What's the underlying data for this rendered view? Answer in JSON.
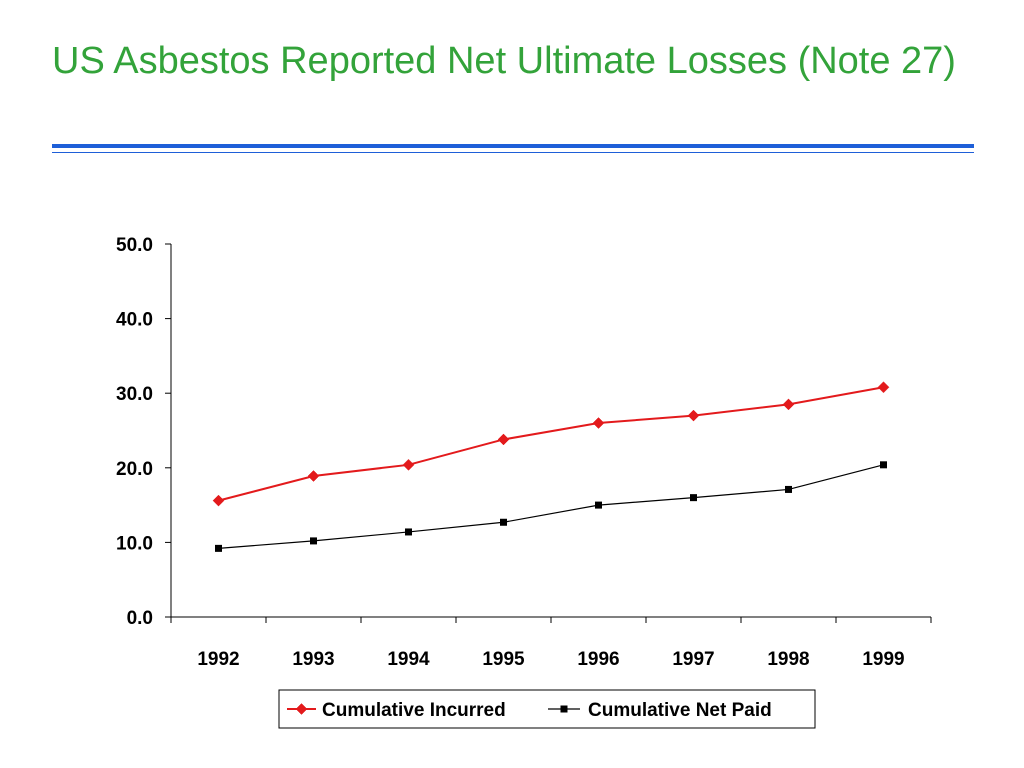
{
  "slide": {
    "title": "US Asbestos Reported Net Ultimate Losses (Note 27)",
    "title_color": "#33a33a",
    "rule_color": "#1e5fd8"
  },
  "chart_data": {
    "type": "line",
    "x": [
      "1992",
      "1993",
      "1994",
      "1995",
      "1996",
      "1997",
      "1998",
      "1999"
    ],
    "y_ticks": [
      "0.0",
      "10.0",
      "20.0",
      "30.0",
      "40.0",
      "50.0"
    ],
    "ylim": [
      0,
      50
    ],
    "grid": false,
    "legend_position": "bottom",
    "series": [
      {
        "name": "Cumulative Incurred",
        "color": "#e31a1c",
        "marker": "diamond",
        "values": [
          15.6,
          18.9,
          20.4,
          23.8,
          26.0,
          27.0,
          28.5,
          30.8
        ]
      },
      {
        "name": "Cumulative Net Paid",
        "color": "#000000",
        "marker": "square",
        "values": [
          9.2,
          10.2,
          11.4,
          12.7,
          15.0,
          16.0,
          17.1,
          20.4
        ]
      }
    ]
  }
}
